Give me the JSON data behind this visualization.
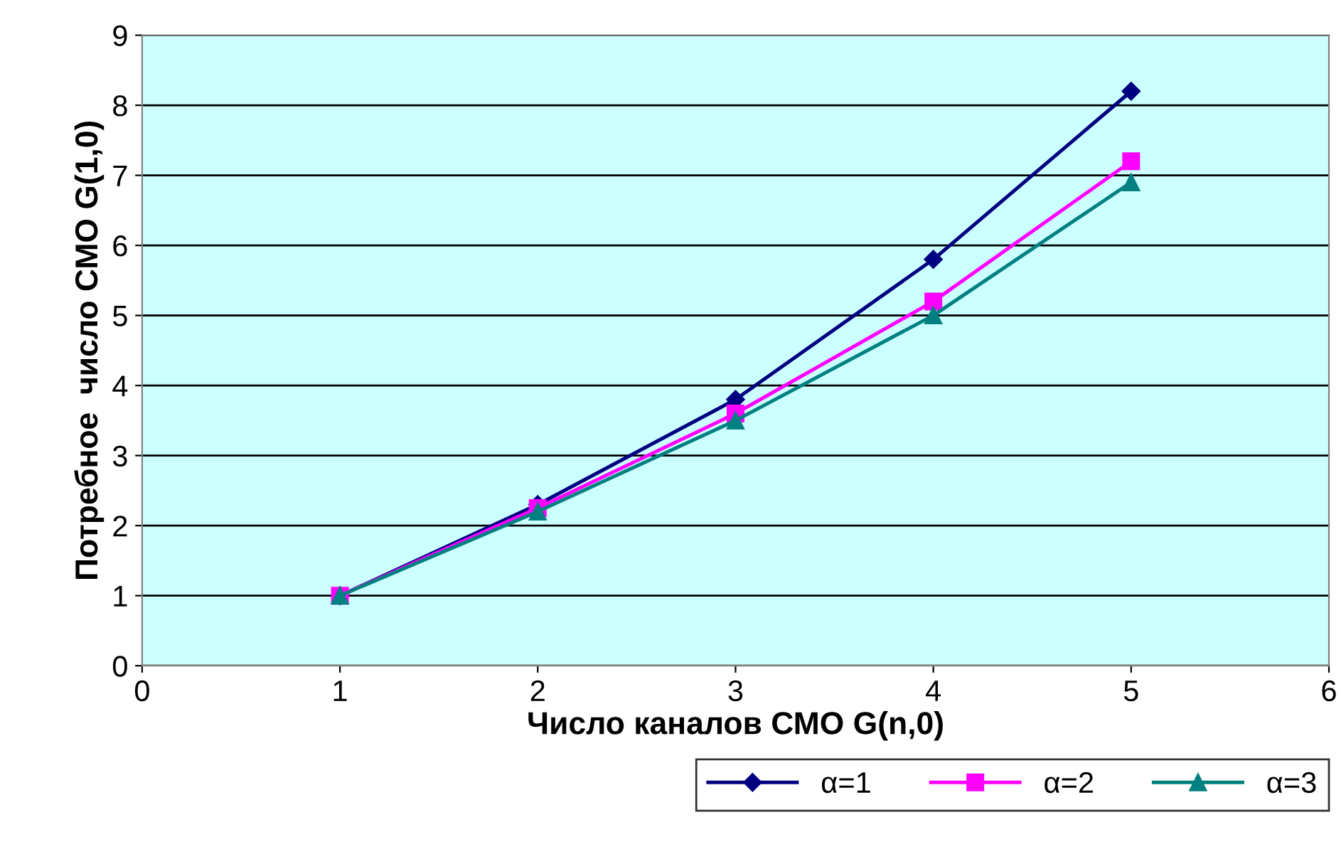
{
  "chart_data": {
    "type": "line",
    "xlabel": "Число каналов СМО G(n,0)",
    "ylabel": "Потребное  число СМО G(1,0)",
    "x": [
      1,
      2,
      3,
      4,
      5
    ],
    "series": [
      {
        "name": "α=1",
        "color": "#000080",
        "marker": "diamond",
        "values": [
          1,
          2.3,
          3.8,
          5.8,
          8.2
        ]
      },
      {
        "name": "α=2",
        "color": "#ff00ff",
        "marker": "square",
        "values": [
          1,
          2.25,
          3.6,
          5.2,
          7.2
        ]
      },
      {
        "name": "α=3",
        "color": "#008080",
        "marker": "triangle",
        "values": [
          1,
          2.2,
          3.5,
          5.0,
          6.9
        ]
      }
    ],
    "xlim": [
      0,
      6
    ],
    "xticks": [
      0,
      1,
      2,
      3,
      4,
      5,
      6
    ],
    "ylim": [
      0,
      9
    ],
    "yticks": [
      0,
      1,
      2,
      3,
      4,
      5,
      6,
      7,
      8,
      9
    ],
    "grid": "y",
    "legend": "bottom right",
    "line_style": "solid"
  }
}
